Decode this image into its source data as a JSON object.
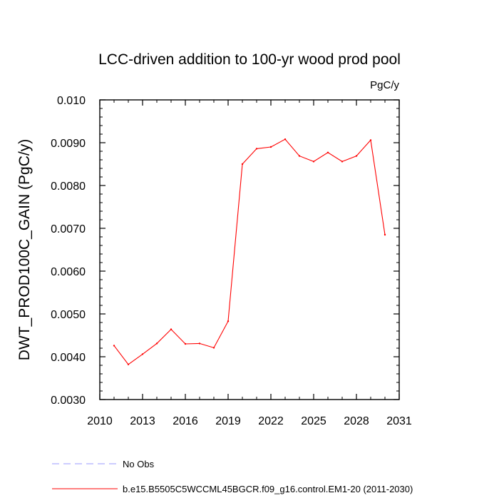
{
  "chart_data": {
    "type": "line",
    "title": "LCC-driven addition to 100-yr wood prod pool",
    "units_label": "PgC/y",
    "xlabel": "",
    "ylabel": "DWT_PROD100C_GAIN  (PgC/y)",
    "xlim": [
      2010,
      2031
    ],
    "ylim": [
      0.003,
      0.01
    ],
    "x_ticks": [
      2010,
      2013,
      2016,
      2019,
      2022,
      2025,
      2028,
      2031
    ],
    "x_tick_labels": [
      "2010",
      "2013",
      "2016",
      "2019",
      "2022",
      "2025",
      "2028",
      "2031"
    ],
    "y_ticks": [
      0.003,
      0.004,
      0.005,
      0.006,
      0.007,
      0.008,
      0.009,
      0.01
    ],
    "y_tick_labels": [
      "0.0030",
      "0.0040",
      "0.0050",
      "0.0060",
      "0.0070",
      "0.0080",
      "0.0090",
      "0.010"
    ],
    "grid": false,
    "legend_position": "bottom-left, below plot",
    "series": [
      {
        "name": "b.e15.B5505C5WCCML45BGCR.f09_g16.control.EM1-20 (2011-2030)",
        "color": "#ff0000",
        "style": "solid",
        "x": [
          2011,
          2012,
          2013,
          2014,
          2015,
          2016,
          2017,
          2018,
          2019,
          2020,
          2021,
          2022,
          2023,
          2024,
          2025,
          2026,
          2027,
          2028,
          2029,
          2030
        ],
        "values": [
          0.00426,
          0.00382,
          0.00406,
          0.00431,
          0.00464,
          0.0043,
          0.00431,
          0.00421,
          0.00483,
          0.0085,
          0.00886,
          0.0089,
          0.00908,
          0.00869,
          0.00856,
          0.00877,
          0.00856,
          0.00869,
          0.00906,
          0.00685
        ]
      },
      {
        "name": "No Obs",
        "color": "#9999ff",
        "style": "dashed",
        "x": [],
        "values": []
      }
    ]
  }
}
